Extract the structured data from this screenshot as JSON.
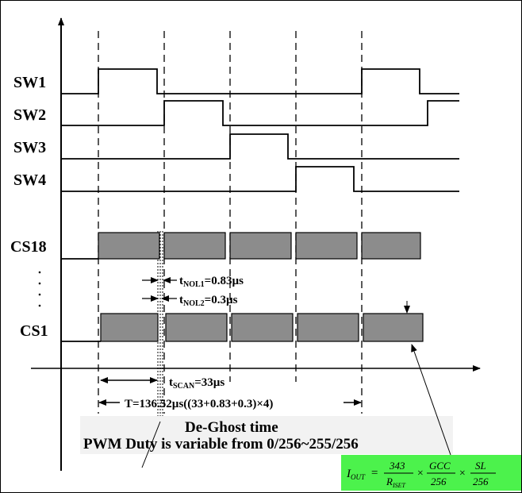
{
  "signals": {
    "sw1": "SW1",
    "sw2": "SW2",
    "sw3": "SW3",
    "sw4": "SW4",
    "cs18": "CS18",
    "cs1": "CS1"
  },
  "annotations": {
    "t_nol1_prefix": "t",
    "t_nol1_sub": "NOL1",
    "t_nol1_value": "=0.83µs",
    "t_nol2_prefix": "t",
    "t_nol2_sub": "NOL2",
    "t_nol2_value": "=0.3µs",
    "t_scan_prefix": "t",
    "t_scan_sub": "SCAN",
    "t_scan_value": "=33µs",
    "period": "T=136.52µs((33+0.83+0.3)×4)",
    "deghost": "De-Ghost time",
    "pwm": "PWM Duty is variable from 0/256~255/256"
  },
  "formula": {
    "lhs_main": "I",
    "lhs_sub": "OUT",
    "equals": "=",
    "num1": "343",
    "den1_main": "R",
    "den1_sub": "ISET",
    "times1": "×",
    "num2": "GCC",
    "den2": "256",
    "times2": "×",
    "num3": "SL",
    "den3": "256"
  },
  "colors": {
    "pulse_fill": "#8c8c8c",
    "formula_bg": "#4cf24c",
    "line": "#000000"
  }
}
